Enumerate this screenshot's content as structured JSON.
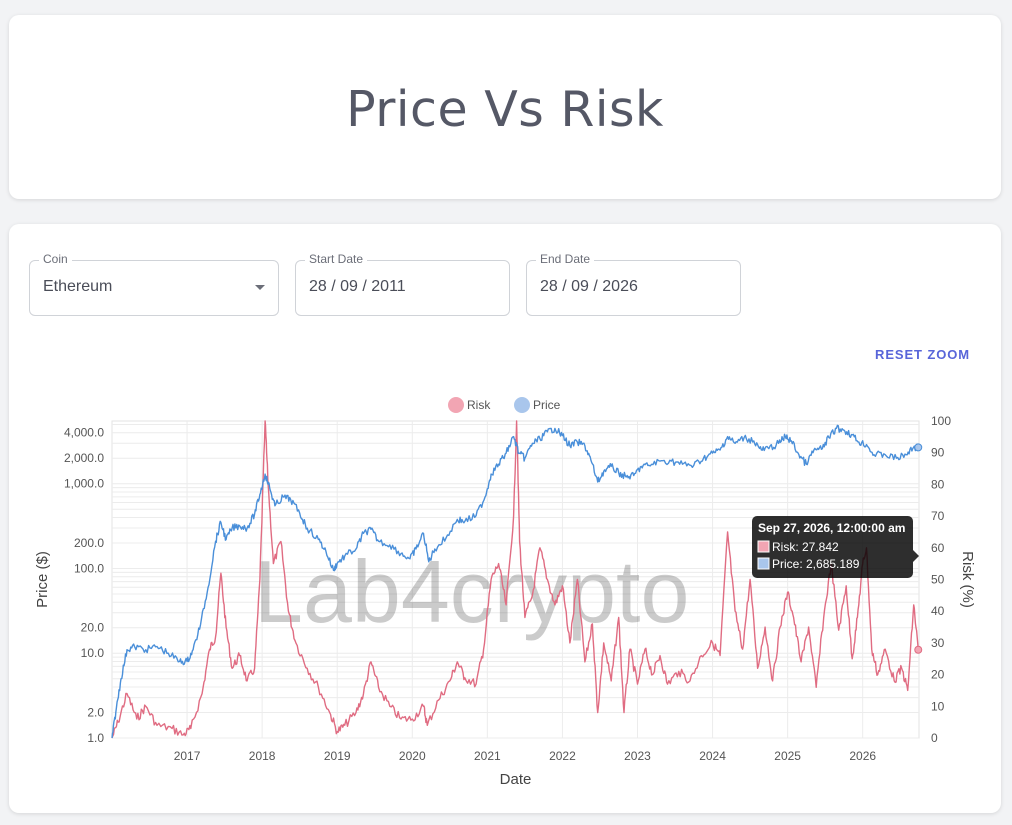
{
  "header": {
    "title": "Price Vs Risk"
  },
  "controls": {
    "coin": {
      "label": "Coin",
      "value": "Ethereum"
    },
    "start_date": {
      "label": "Start Date",
      "value": "28 / 09 / 2011"
    },
    "end_date": {
      "label": "End Date",
      "value": "28 / 09 / 2026"
    },
    "reset_zoom": "RESET ZOOM"
  },
  "watermark": "Lab4crypto",
  "chart_data": {
    "type": "line",
    "xlabel": "Date",
    "y_left_label": "Price ($)",
    "y_right_label": "Risk (%)",
    "y_left_scale": "log",
    "y_left_ticks": [
      "1.0",
      "2.0",
      "10.0",
      "20.0",
      "100.0",
      "200.0",
      "1,000.0",
      "2,000.0",
      "4,000.0"
    ],
    "y_left_tick_values": [
      1,
      2,
      10,
      20,
      100,
      200,
      1000,
      2000,
      4000
    ],
    "y_right_ticks": [
      "0",
      "10",
      "20",
      "30",
      "40",
      "50",
      "60",
      "70",
      "80",
      "90",
      "100"
    ],
    "y_right_range": [
      0,
      100
    ],
    "x_ticks": [
      "2017",
      "2018",
      "2019",
      "2020",
      "2021",
      "2022",
      "2023",
      "2024",
      "2025",
      "2026"
    ],
    "x_range_years": [
      2016.0,
      2026.75
    ],
    "legend": {
      "position": "top"
    },
    "grid": true,
    "series": [
      {
        "name": "Risk",
        "color": "#e06c82",
        "legend_color": "#f2a5b3",
        "axis": "right",
        "points": [
          [
            2016.0,
            0
          ],
          [
            2016.08,
            5
          ],
          [
            2016.2,
            14
          ],
          [
            2016.33,
            6
          ],
          [
            2016.45,
            10
          ],
          [
            2016.6,
            4
          ],
          [
            2016.8,
            3
          ],
          [
            2016.95,
            1
          ],
          [
            2017.05,
            3
          ],
          [
            2017.2,
            14
          ],
          [
            2017.3,
            28
          ],
          [
            2017.38,
            32
          ],
          [
            2017.45,
            52
          ],
          [
            2017.52,
            35
          ],
          [
            2017.6,
            22
          ],
          [
            2017.7,
            26
          ],
          [
            2017.8,
            18
          ],
          [
            2017.9,
            22
          ],
          [
            2017.97,
            50
          ],
          [
            2018.04,
            100
          ],
          [
            2018.08,
            80
          ],
          [
            2018.15,
            55
          ],
          [
            2018.25,
            62
          ],
          [
            2018.35,
            40
          ],
          [
            2018.45,
            30
          ],
          [
            2018.6,
            22
          ],
          [
            2018.75,
            16
          ],
          [
            2018.9,
            8
          ],
          [
            2019.0,
            2
          ],
          [
            2019.1,
            4
          ],
          [
            2019.25,
            8
          ],
          [
            2019.35,
            14
          ],
          [
            2019.45,
            24
          ],
          [
            2019.55,
            16
          ],
          [
            2019.7,
            10
          ],
          [
            2019.85,
            6
          ],
          [
            2020.0,
            6
          ],
          [
            2020.15,
            10
          ],
          [
            2020.2,
            4
          ],
          [
            2020.35,
            12
          ],
          [
            2020.5,
            18
          ],
          [
            2020.6,
            24
          ],
          [
            2020.7,
            19
          ],
          [
            2020.85,
            17
          ],
          [
            2020.95,
            28
          ],
          [
            2021.05,
            50
          ],
          [
            2021.15,
            55
          ],
          [
            2021.25,
            42
          ],
          [
            2021.35,
            70
          ],
          [
            2021.39,
            100
          ],
          [
            2021.43,
            62
          ],
          [
            2021.5,
            38
          ],
          [
            2021.6,
            45
          ],
          [
            2021.7,
            60
          ],
          [
            2021.8,
            50
          ],
          [
            2021.9,
            42
          ],
          [
            2022.0,
            48
          ],
          [
            2022.1,
            30
          ],
          [
            2022.2,
            50
          ],
          [
            2022.3,
            24
          ],
          [
            2022.4,
            36
          ],
          [
            2022.47,
            8
          ],
          [
            2022.55,
            30
          ],
          [
            2022.65,
            18
          ],
          [
            2022.75,
            38
          ],
          [
            2022.82,
            8
          ],
          [
            2022.9,
            28
          ],
          [
            2023.0,
            17
          ],
          [
            2023.1,
            28
          ],
          [
            2023.2,
            20
          ],
          [
            2023.3,
            26
          ],
          [
            2023.4,
            17
          ],
          [
            2023.55,
            21
          ],
          [
            2023.7,
            18
          ],
          [
            2023.85,
            26
          ],
          [
            2024.0,
            30
          ],
          [
            2024.1,
            26
          ],
          [
            2024.2,
            65
          ],
          [
            2024.3,
            40
          ],
          [
            2024.4,
            28
          ],
          [
            2024.5,
            50
          ],
          [
            2024.6,
            22
          ],
          [
            2024.7,
            35
          ],
          [
            2024.8,
            18
          ],
          [
            2024.9,
            35
          ],
          [
            2025.0,
            46
          ],
          [
            2025.08,
            38
          ],
          [
            2025.18,
            24
          ],
          [
            2025.28,
            35
          ],
          [
            2025.38,
            16
          ],
          [
            2025.48,
            38
          ],
          [
            2025.58,
            55
          ],
          [
            2025.68,
            34
          ],
          [
            2025.78,
            48
          ],
          [
            2025.86,
            25
          ],
          [
            2025.93,
            38
          ],
          [
            2026.0,
            55
          ],
          [
            2026.05,
            60
          ],
          [
            2026.12,
            28
          ],
          [
            2026.2,
            20
          ],
          [
            2026.3,
            28
          ],
          [
            2026.42,
            18
          ],
          [
            2026.52,
            22
          ],
          [
            2026.6,
            15
          ],
          [
            2026.68,
            42
          ],
          [
            2026.74,
            27.842
          ]
        ]
      },
      {
        "name": "Price",
        "color": "#4a8fd9",
        "legend_color": "#a9c6ec",
        "axis": "left",
        "points": [
          [
            2016.0,
            1.0
          ],
          [
            2016.05,
            2.0
          ],
          [
            2016.12,
            5.0
          ],
          [
            2016.2,
            11
          ],
          [
            2016.3,
            12
          ],
          [
            2016.45,
            11
          ],
          [
            2016.6,
            12
          ],
          [
            2016.75,
            10
          ],
          [
            2016.9,
            8
          ],
          [
            2017.0,
            8
          ],
          [
            2017.08,
            11
          ],
          [
            2017.18,
            22
          ],
          [
            2017.28,
            60
          ],
          [
            2017.38,
            210
          ],
          [
            2017.45,
            350
          ],
          [
            2017.52,
            220
          ],
          [
            2017.6,
            300
          ],
          [
            2017.7,
            320
          ],
          [
            2017.8,
            300
          ],
          [
            2017.9,
            440
          ],
          [
            2017.97,
            750
          ],
          [
            2018.04,
            1300
          ],
          [
            2018.1,
            900
          ],
          [
            2018.17,
            550
          ],
          [
            2018.28,
            700
          ],
          [
            2018.38,
            650
          ],
          [
            2018.5,
            450
          ],
          [
            2018.6,
            300
          ],
          [
            2018.75,
            220
          ],
          [
            2018.85,
            160
          ],
          [
            2018.95,
            95
          ],
          [
            2019.0,
            115
          ],
          [
            2019.1,
            140
          ],
          [
            2019.25,
            170
          ],
          [
            2019.35,
            260
          ],
          [
            2019.45,
            290
          ],
          [
            2019.55,
            210
          ],
          [
            2019.7,
            190
          ],
          [
            2019.85,
            150
          ],
          [
            2019.97,
            130
          ],
          [
            2020.05,
            170
          ],
          [
            2020.15,
            260
          ],
          [
            2020.22,
            120
          ],
          [
            2020.3,
            170
          ],
          [
            2020.45,
            230
          ],
          [
            2020.6,
            380
          ],
          [
            2020.7,
            360
          ],
          [
            2020.85,
            420
          ],
          [
            2020.97,
            700
          ],
          [
            2021.05,
            1300
          ],
          [
            2021.15,
            1700
          ],
          [
            2021.25,
            2300
          ],
          [
            2021.35,
            3600
          ],
          [
            2021.42,
            2300
          ],
          [
            2021.5,
            2000
          ],
          [
            2021.6,
            3000
          ],
          [
            2021.7,
            3400
          ],
          [
            2021.8,
            4100
          ],
          [
            2021.9,
            4500
          ],
          [
            2022.0,
            3700
          ],
          [
            2022.1,
            2800
          ],
          [
            2022.2,
            3100
          ],
          [
            2022.3,
            2800
          ],
          [
            2022.38,
            1900
          ],
          [
            2022.47,
            1050
          ],
          [
            2022.55,
            1400
          ],
          [
            2022.65,
            1600
          ],
          [
            2022.75,
            1350
          ],
          [
            2022.85,
            1200
          ],
          [
            2022.95,
            1250
          ],
          [
            2023.05,
            1600
          ],
          [
            2023.15,
            1650
          ],
          [
            2023.3,
            1850
          ],
          [
            2023.45,
            1850
          ],
          [
            2023.6,
            1700
          ],
          [
            2023.75,
            1650
          ],
          [
            2023.88,
            2000
          ],
          [
            2024.0,
            2300
          ],
          [
            2024.1,
            2500
          ],
          [
            2024.2,
            3600
          ],
          [
            2024.3,
            3000
          ],
          [
            2024.42,
            3500
          ],
          [
            2024.55,
            3200
          ],
          [
            2024.65,
            2500
          ],
          [
            2024.75,
            2600
          ],
          [
            2024.88,
            3000
          ],
          [
            2024.97,
            3600
          ],
          [
            2025.05,
            3200
          ],
          [
            2025.15,
            2200
          ],
          [
            2025.25,
            1700
          ],
          [
            2025.35,
            2500
          ],
          [
            2025.45,
            2550
          ],
          [
            2025.55,
            3500
          ],
          [
            2025.65,
            4500
          ],
          [
            2025.75,
            4300
          ],
          [
            2025.85,
            3800
          ],
          [
            2025.95,
            3100
          ],
          [
            2026.05,
            2900
          ],
          [
            2026.15,
            2200
          ],
          [
            2026.3,
            2200
          ],
          [
            2026.45,
            2000
          ],
          [
            2026.58,
            2200
          ],
          [
            2026.68,
            2700
          ],
          [
            2026.74,
            2685.189
          ]
        ]
      }
    ],
    "tooltip": {
      "title": "Sep 27, 2026, 12:00:00 am",
      "lines": [
        "Risk: 27.842",
        "Price: 2,685.189"
      ]
    }
  }
}
